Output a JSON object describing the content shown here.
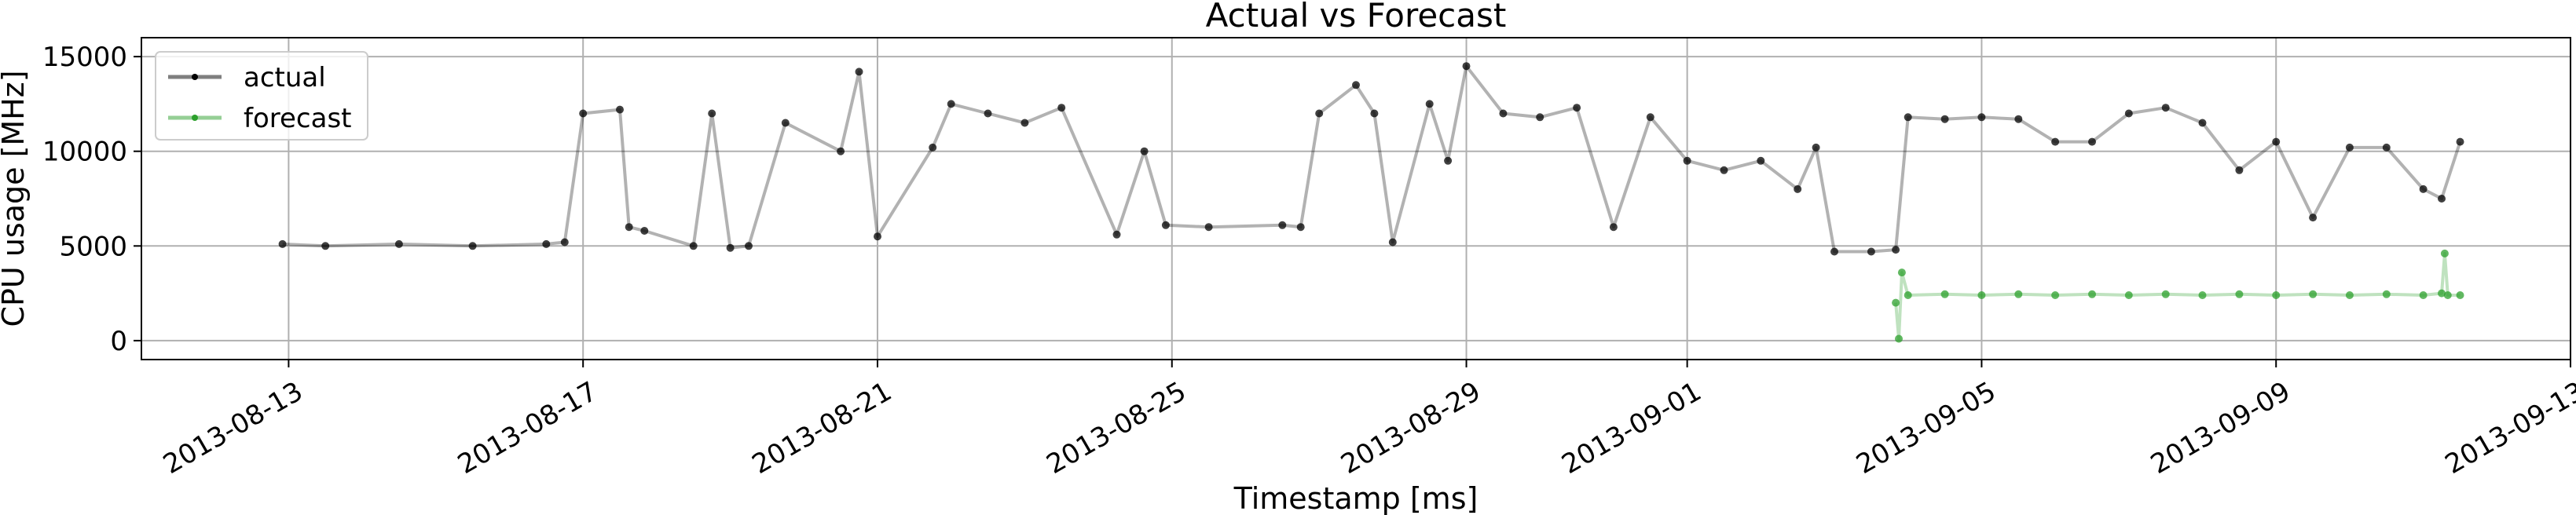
{
  "chart_data": {
    "type": "line",
    "title": "Actual vs Forecast",
    "xlabel": "Timestamp [ms]",
    "ylabel": "CPU usage [MHz]",
    "xlim": [
      "2013-08-11",
      "2013-09-13"
    ],
    "ylim": [
      -1000,
      16000
    ],
    "grid": true,
    "legend_position": "top-left",
    "x_ticks": [
      "2013-08-13",
      "2013-08-17",
      "2013-08-21",
      "2013-08-25",
      "2013-08-29",
      "2013-09-01",
      "2013-09-05",
      "2013-09-09",
      "2013-09-13"
    ],
    "y_ticks": [
      0,
      5000,
      10000,
      15000
    ],
    "series": [
      {
        "name": "actual",
        "color": "#000000",
        "x": [
          "2013-08-12 22:00",
          "2013-08-13 12:00",
          "2013-08-14 12:00",
          "2013-08-15 12:00",
          "2013-08-16 12:00",
          "2013-08-16 18:00",
          "2013-08-17 00:00",
          "2013-08-17 12:00",
          "2013-08-17 15:00",
          "2013-08-17 20:00",
          "2013-08-18 12:00",
          "2013-08-18 18:00",
          "2013-08-19 00:00",
          "2013-08-19 06:00",
          "2013-08-19 18:00",
          "2013-08-20 12:00",
          "2013-08-20 18:00",
          "2013-08-21 00:00",
          "2013-08-21 18:00",
          "2013-08-22 00:00",
          "2013-08-22 12:00",
          "2013-08-23 00:00",
          "2013-08-23 12:00",
          "2013-08-24 06:00",
          "2013-08-24 15:00",
          "2013-08-24 22:00",
          "2013-08-25 12:00",
          "2013-08-26 12:00",
          "2013-08-26 18:00",
          "2013-08-27 00:00",
          "2013-08-27 12:00",
          "2013-08-27 18:00",
          "2013-08-28 00:00",
          "2013-08-28 12:00",
          "2013-08-28 18:00",
          "2013-08-29 00:00",
          "2013-08-29 12:00",
          "2013-08-30 00:00",
          "2013-08-30 12:00",
          "2013-08-31 00:00",
          "2013-08-31 12:00",
          "2013-09-01 00:00",
          "2013-09-01 12:00",
          "2013-09-02 00:00",
          "2013-09-02 12:00",
          "2013-09-02 18:00",
          "2013-09-03 00:00",
          "2013-09-03 12:00",
          "2013-09-03 20:00",
          "2013-09-04 00:00",
          "2013-09-04 12:00",
          "2013-09-05 00:00",
          "2013-09-05 12:00",
          "2013-09-06 00:00",
          "2013-09-06 12:00",
          "2013-09-07 00:00",
          "2013-09-07 12:00",
          "2013-09-08 00:00",
          "2013-09-08 12:00",
          "2013-09-09 00:00",
          "2013-09-09 12:00",
          "2013-09-10 00:00",
          "2013-09-10 12:00",
          "2013-09-11 00:00",
          "2013-09-11 06:00",
          "2013-09-11 12:00"
        ],
        "y": [
          5100,
          5000,
          5100,
          5000,
          5100,
          5200,
          12000,
          12200,
          6000,
          5800,
          5000,
          12000,
          4900,
          5000,
          11500,
          10000,
          14200,
          5500,
          10200,
          12500,
          12000,
          11500,
          12300,
          5600,
          10000,
          6100,
          6000,
          6100,
          6000,
          12000,
          13500,
          12000,
          5200,
          12500,
          9500,
          14500,
          12000,
          11800,
          12300,
          6000,
          11800,
          9500,
          9000,
          9500,
          8000,
          10200,
          4700,
          4700,
          4800,
          11800,
          11700,
          11800,
          11700,
          10500,
          10500,
          12000,
          12300,
          11500,
          9000,
          10500,
          6500,
          10200,
          10200,
          8000,
          7500,
          10500
        ]
      },
      {
        "name": "forecast",
        "color": "#2ca02c",
        "x": [
          "2013-09-03 20:00",
          "2013-09-03 21:00",
          "2013-09-03 22:00",
          "2013-09-04 00:00",
          "2013-09-04 12:00",
          "2013-09-05 00:00",
          "2013-09-05 12:00",
          "2013-09-06 00:00",
          "2013-09-06 12:00",
          "2013-09-07 00:00",
          "2013-09-07 12:00",
          "2013-09-08 00:00",
          "2013-09-08 12:00",
          "2013-09-09 00:00",
          "2013-09-09 12:00",
          "2013-09-10 00:00",
          "2013-09-10 12:00",
          "2013-09-11 00:00",
          "2013-09-11 06:00",
          "2013-09-11 07:00",
          "2013-09-11 08:00",
          "2013-09-11 12:00"
        ],
        "y": [
          2000,
          100,
          3600,
          2400,
          2450,
          2400,
          2450,
          2400,
          2450,
          2400,
          2450,
          2400,
          2450,
          2400,
          2450,
          2400,
          2450,
          2400,
          2500,
          4600,
          2400,
          2400
        ]
      }
    ]
  }
}
